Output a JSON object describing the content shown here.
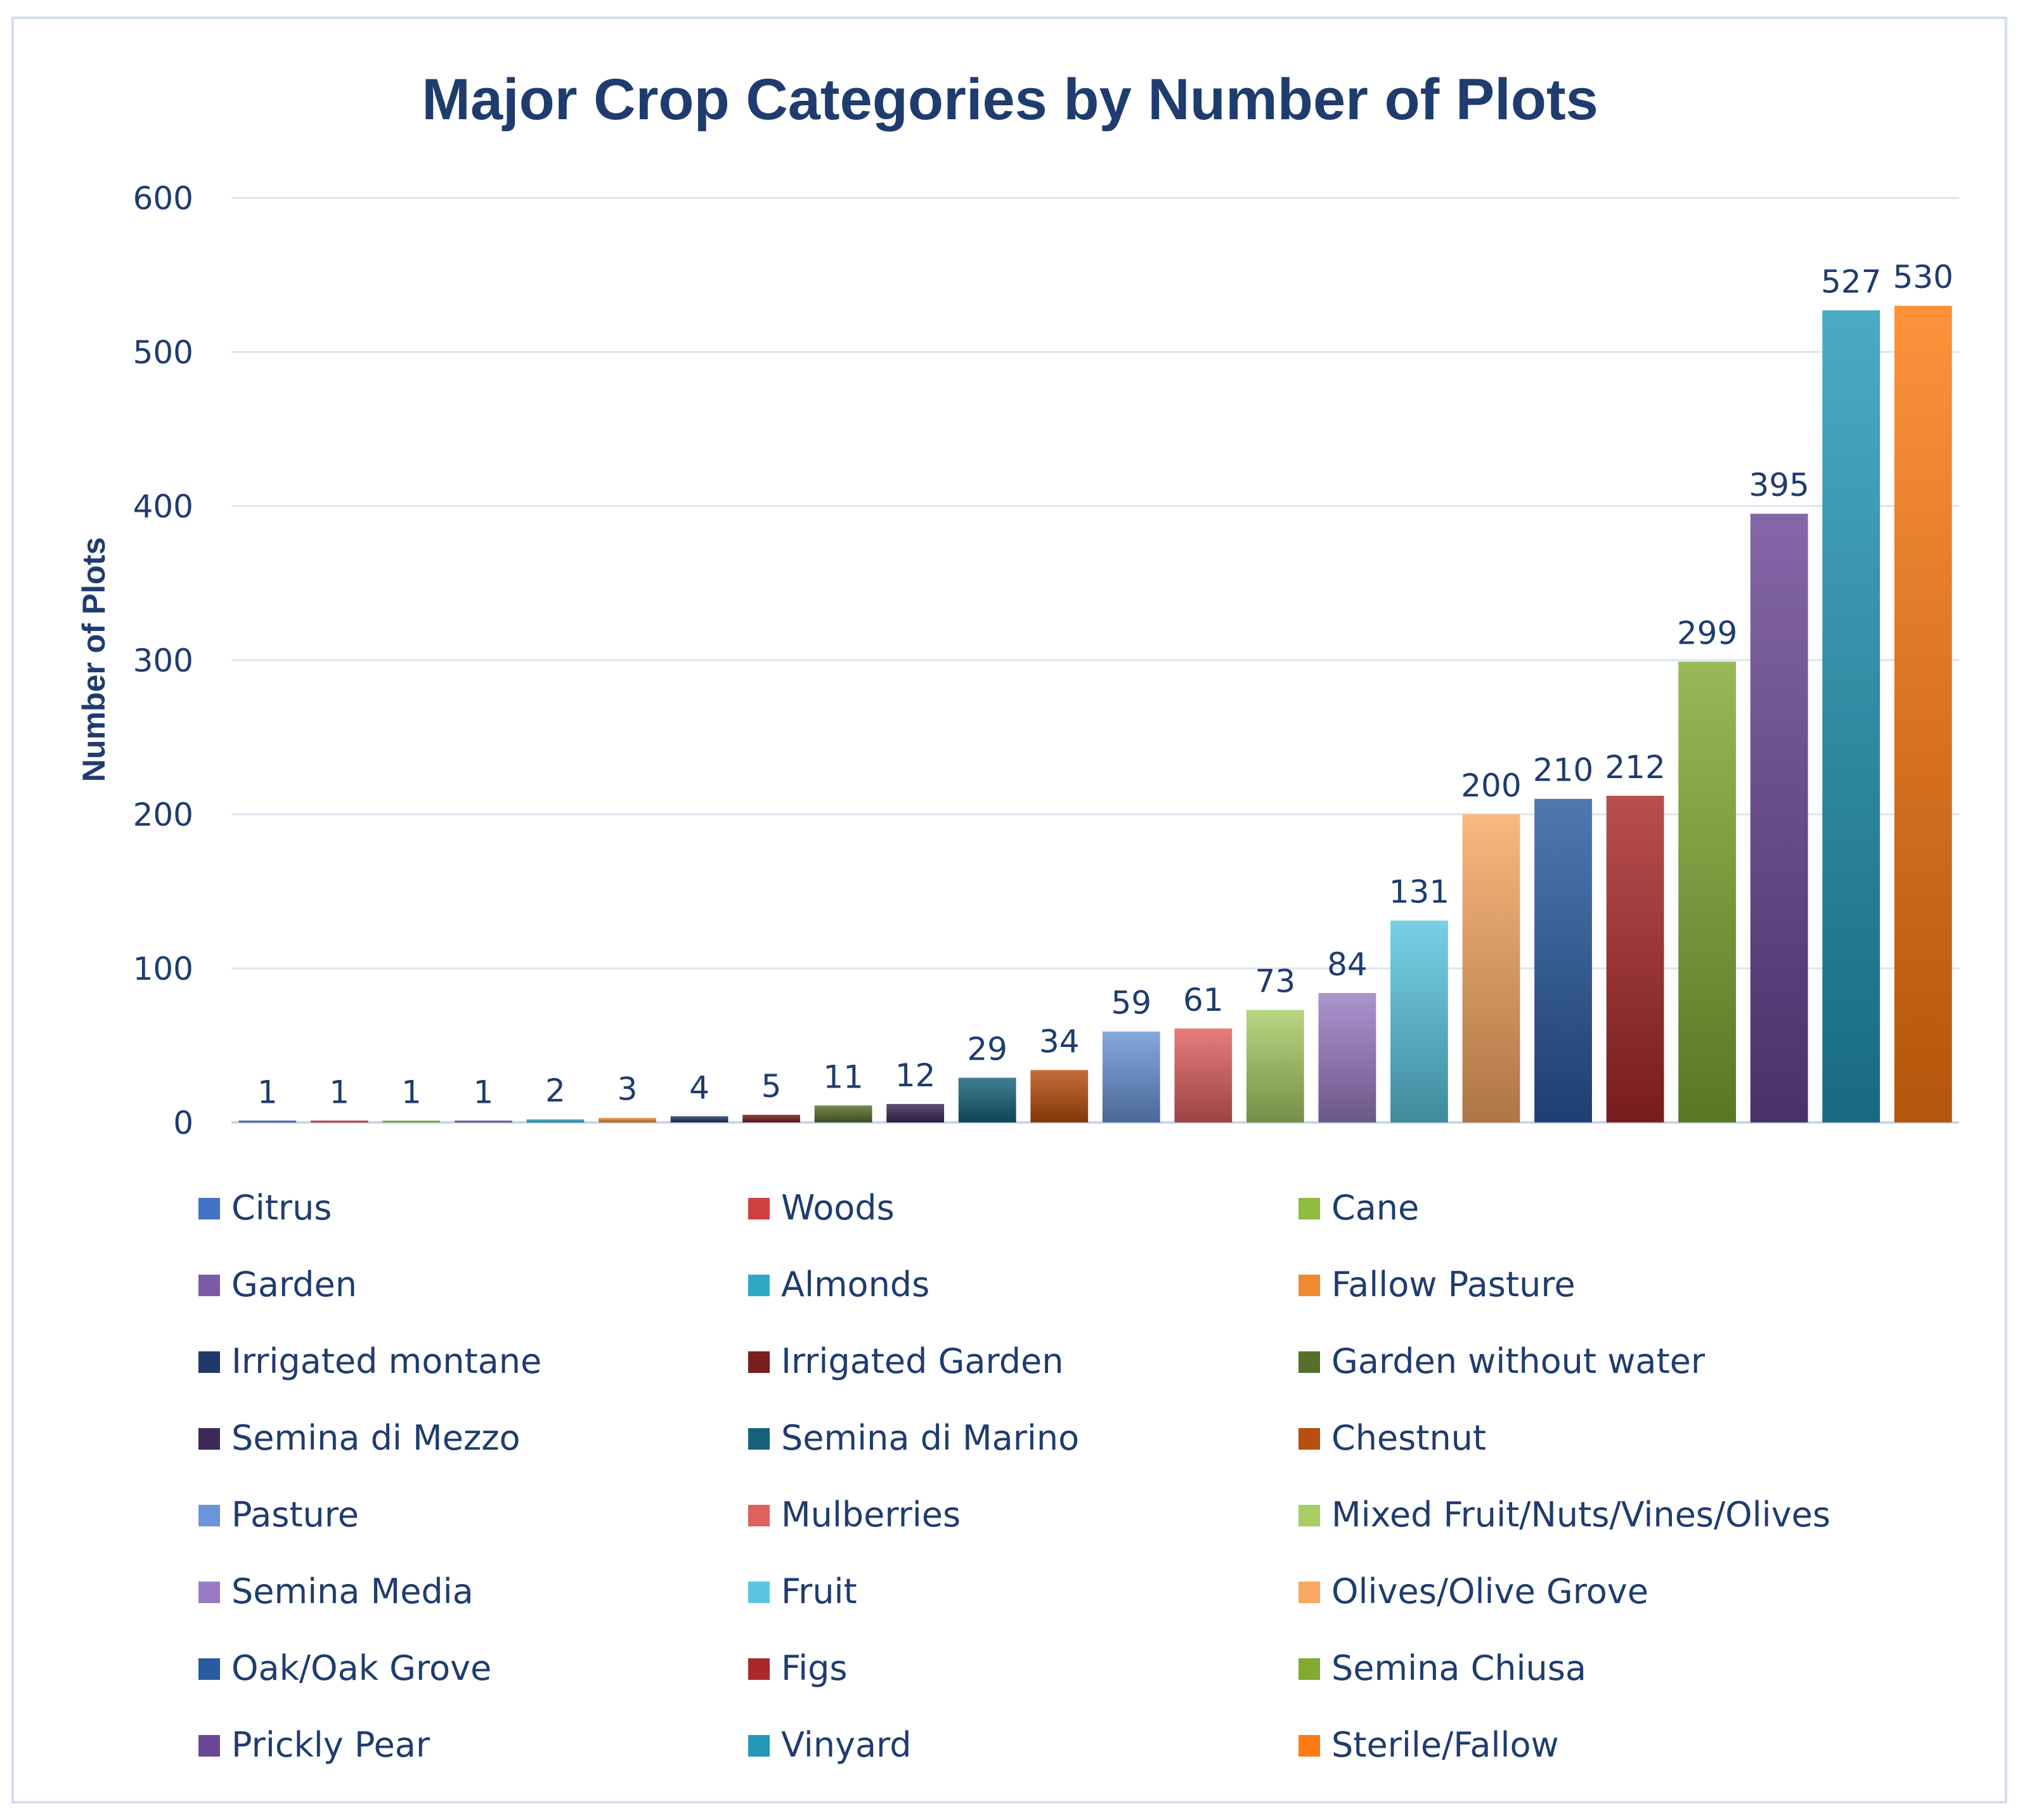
{
  "chart_data": {
    "type": "bar",
    "title": "Major Crop Categories by Number of Plots",
    "xlabel": "",
    "ylabel": "Number of Plots",
    "ylim": [
      0,
      600
    ],
    "yticks": [
      "0",
      "100",
      "200",
      "300",
      "400",
      "500",
      "600"
    ],
    "grid": true,
    "legend_position": "bottom",
    "categories": [
      "Citrus",
      "Woods",
      "Cane",
      "Garden",
      "Almonds",
      "Fallow Pasture",
      "Irrigated montane",
      "Irrigated Garden",
      "Garden without water",
      "Semina di Mezzo",
      "Semina di Marino",
      "Chestnut",
      "Pasture",
      "Mulberries",
      "Mixed Fruit/Nuts/Vines/Olives",
      "Semina Media",
      "Fruit",
      "Olives/Olive Grove",
      "Oak/Oak Grove",
      "Figs",
      "Semina Chiusa",
      "Prickly Pear",
      "Vinyard",
      "Sterile/Fallow"
    ],
    "values": [
      1,
      1,
      1,
      1,
      2,
      3,
      4,
      5,
      11,
      12,
      29,
      34,
      59,
      61,
      73,
      84,
      131,
      200,
      210,
      212,
      299,
      395,
      527,
      530
    ],
    "colors": [
      "#4472c4",
      "#d04040",
      "#90bc40",
      "#7b5aa6",
      "#2fa8c6",
      "#f08a30",
      "#1f3a68",
      "#7a1e1e",
      "#56702a",
      "#3d2a58",
      "#17627a",
      "#b84f0e",
      "#6a95d8",
      "#e06060",
      "#a8cc66",
      "#9a7cc4",
      "#5cc6e0",
      "#f8a862",
      "#2a5aa0",
      "#aa2828",
      "#80aa32",
      "#6a4696",
      "#2298b8",
      "#ff7a10"
    ]
  }
}
